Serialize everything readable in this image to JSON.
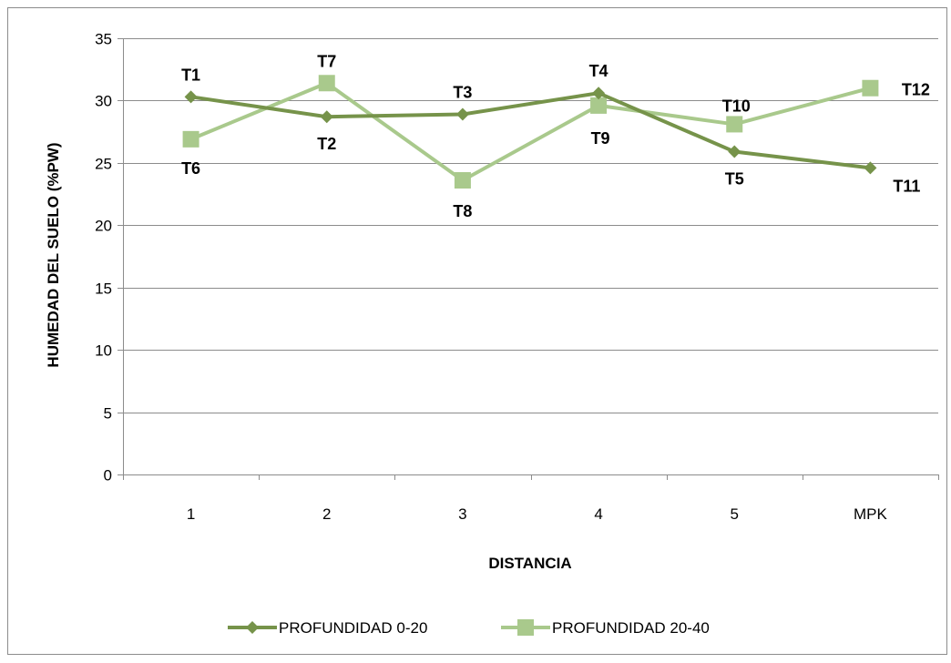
{
  "chart_data": {
    "type": "line",
    "title": "",
    "xlabel": "DISTANCIA",
    "ylabel": "HUMEDAD DEL SUELO (%PW)",
    "categories": [
      "1",
      "2",
      "3",
      "4",
      "5",
      "MPK"
    ],
    "ylim": [
      0,
      35
    ],
    "yticks": [
      0,
      5,
      10,
      15,
      20,
      25,
      30,
      35
    ],
    "grid": "horizontal",
    "legend": "bottom",
    "series": [
      {
        "name": "PROFUNDIDAD 0-20",
        "marker": "diamond",
        "color": "#76934A",
        "values": [
          30.3,
          28.7,
          28.9,
          30.6,
          25.9,
          24.6
        ],
        "point_labels": [
          "T1",
          "T2",
          "T3",
          "T4",
          "T5",
          "T11"
        ]
      },
      {
        "name": "PROFUNDIDAD 20-40",
        "marker": "square",
        "color": "#A9C98C",
        "values": [
          26.9,
          31.4,
          23.6,
          29.6,
          28.1,
          31.0
        ],
        "point_labels": [
          "T6",
          "T7",
          "T8",
          "T9",
          "T10",
          "T12"
        ]
      }
    ]
  }
}
